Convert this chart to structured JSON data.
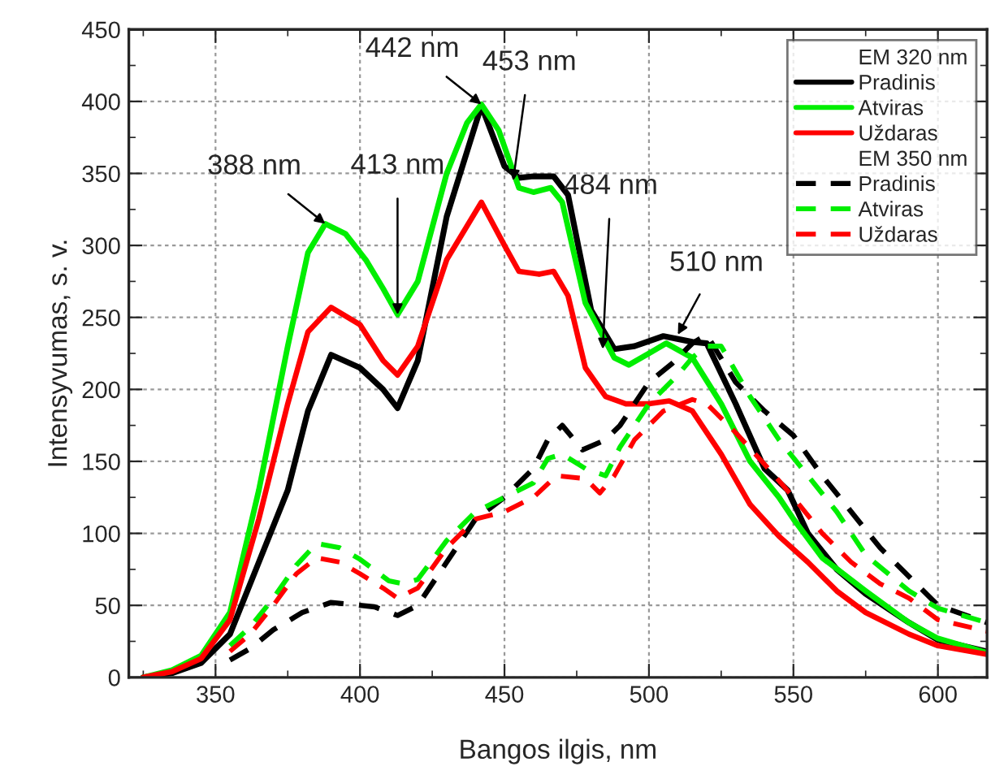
{
  "chart_data": {
    "type": "line",
    "xlabel": "Bangos ilgis, nm",
    "ylabel": "Intensyvumas, s. v.",
    "xlim": [
      320,
      617
    ],
    "ylim": [
      0,
      450
    ],
    "xticks": [
      {
        "value": 325,
        "label": null
      },
      350,
      {
        "value": 375,
        "label": null
      },
      400,
      {
        "value": 425,
        "label": null
      },
      450,
      {
        "value": 475,
        "label": null
      },
      500,
      {
        "value": 525,
        "label": null
      },
      550,
      {
        "value": 575,
        "label": null
      },
      600
    ],
    "yticks": [
      0,
      {
        "value": 25,
        "label": null
      },
      50,
      {
        "value": 75,
        "label": null
      },
      100,
      {
        "value": 125,
        "label": null
      },
      150,
      {
        "value": 175,
        "label": null
      },
      200,
      {
        "value": 225,
        "label": null
      },
      250,
      {
        "value": 275,
        "label": null
      },
      300,
      {
        "value": 325,
        "label": null
      },
      350,
      {
        "value": 375,
        "label": null
      },
      400,
      {
        "value": 425,
        "label": null
      },
      450
    ],
    "grid": true,
    "legend": "top right",
    "marker": "none",
    "annotations": [
      "EM 320 nm",
      "EM 350 nm",
      {
        "text": "388 nm",
        "x": 388,
        "y": 315
      },
      {
        "text": "413 nm",
        "x": 413,
        "y": 252
      },
      {
        "text": "442 nm",
        "x": 442,
        "y": 398
      },
      {
        "text": "453 nm",
        "x": 453,
        "y": 345
      },
      {
        "text": "484 nm",
        "x": 484,
        "y": 228
      },
      {
        "text": "510 nm",
        "x": 510,
        "y": 238
      }
    ],
    "series": [
      {
        "name": "Pradinis",
        "color": "#000000",
        "line_style": "solid",
        "x": [
          325,
          335,
          345,
          355,
          365,
          375,
          382,
          390,
          400,
          408,
          413,
          420,
          430,
          442,
          450,
          455,
          460,
          467,
          472,
          480,
          488,
          495,
          505,
          515,
          520,
          530,
          540,
          548,
          555,
          565,
          575,
          590,
          600,
          617
        ],
        "values": [
          0,
          3,
          10,
          30,
          80,
          130,
          185,
          224,
          215,
          200,
          187,
          220,
          320,
          397,
          355,
          347,
          348,
          348,
          335,
          255,
          228,
          230,
          237,
          233,
          232,
          190,
          145,
          130,
          100,
          75,
          58,
          38,
          26,
          18
        ]
      },
      {
        "name": "Atviras",
        "color": "#00ee00",
        "line_style": "solid",
        "x": [
          325,
          335,
          345,
          355,
          365,
          375,
          382,
          388,
          395,
          402,
          408,
          413,
          420,
          430,
          437,
          442,
          448,
          455,
          460,
          466,
          470,
          478,
          488,
          493,
          500,
          506,
          515,
          525,
          535,
          545,
          550,
          560,
          575,
          590,
          600,
          617
        ],
        "values": [
          0,
          5,
          15,
          45,
          130,
          230,
          295,
          315,
          308,
          290,
          270,
          252,
          275,
          350,
          385,
          398,
          380,
          340,
          337,
          340,
          330,
          260,
          222,
          217,
          225,
          232,
          222,
          190,
          150,
          125,
          110,
          83,
          60,
          38,
          27,
          17
        ]
      },
      {
        "name": "Uždaras",
        "color": "#ff0000",
        "line_style": "solid",
        "x": [
          325,
          335,
          345,
          355,
          365,
          375,
          382,
          390,
          400,
          408,
          413,
          420,
          430,
          442,
          450,
          455,
          462,
          467,
          472,
          478,
          485,
          492,
          500,
          507,
          515,
          525,
          535,
          545,
          555,
          565,
          575,
          590,
          600,
          617
        ],
        "values": [
          0,
          4,
          13,
          40,
          110,
          190,
          240,
          257,
          245,
          220,
          210,
          230,
          290,
          330,
          300,
          282,
          280,
          282,
          265,
          215,
          195,
          190,
          190,
          192,
          185,
          155,
          120,
          98,
          80,
          60,
          45,
          30,
          22,
          16
        ]
      },
      {
        "name": "Pradinis",
        "color": "#000000",
        "line_style": "dashed",
        "x": [
          355,
          362,
          370,
          380,
          390,
          400,
          405,
          413,
          420,
          430,
          440,
          450,
          460,
          465,
          470,
          477,
          485,
          490,
          495,
          500,
          508,
          515,
          520,
          530,
          540,
          550,
          560,
          570,
          580,
          590,
          600,
          617
        ],
        "values": [
          12,
          20,
          33,
          45,
          52,
          50,
          49,
          43,
          50,
          80,
          110,
          125,
          145,
          165,
          175,
          158,
          165,
          175,
          190,
          205,
          218,
          232,
          238,
          205,
          185,
          168,
          140,
          115,
          90,
          70,
          50,
          38
        ]
      },
      {
        "name": "Atviras",
        "color": "#00ee00",
        "line_style": "dashed",
        "x": [
          355,
          362,
          370,
          378,
          385,
          393,
          400,
          410,
          415,
          420,
          430,
          440,
          450,
          460,
          465,
          470,
          478,
          485,
          490,
          500,
          505,
          510,
          515,
          520,
          525,
          535,
          545,
          555,
          565,
          575,
          590,
          600,
          617
        ],
        "values": [
          22,
          35,
          55,
          78,
          93,
          90,
          82,
          67,
          65,
          68,
          95,
          115,
          125,
          135,
          152,
          155,
          145,
          140,
          160,
          190,
          200,
          210,
          222,
          230,
          230,
          195,
          165,
          140,
          115,
          85,
          60,
          48,
          38
        ]
      },
      {
        "name": "Uždaras",
        "color": "#ff0000",
        "line_style": "dashed",
        "x": [
          355,
          362,
          370,
          378,
          385,
          393,
          400,
          408,
          413,
          420,
          430,
          440,
          450,
          460,
          468,
          478,
          483,
          488,
          495,
          505,
          515,
          520,
          530,
          540,
          550,
          560,
          570,
          580,
          590,
          600,
          617
        ],
        "values": [
          18,
          30,
          50,
          72,
          83,
          80,
          72,
          62,
          55,
          62,
          90,
          110,
          115,
          125,
          140,
          138,
          128,
          140,
          165,
          185,
          193,
          190,
          170,
          148,
          125,
          100,
          80,
          65,
          55,
          40,
          32
        ]
      }
    ]
  }
}
